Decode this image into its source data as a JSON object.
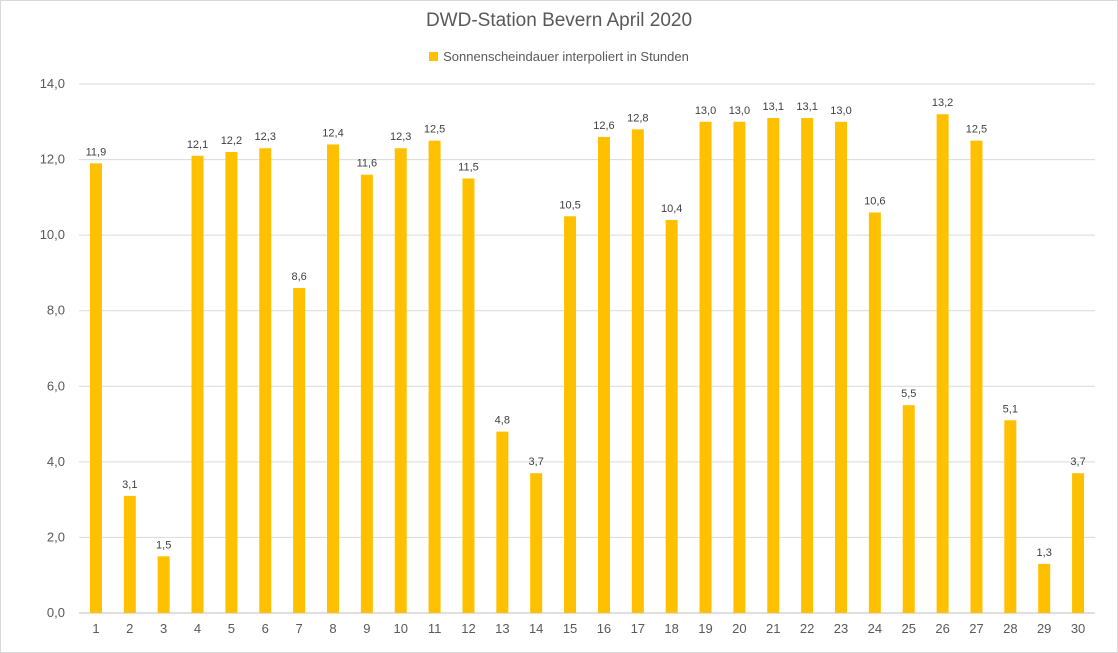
{
  "chart_data": {
    "type": "bar",
    "title": "DWD-Station Bevern April 2020",
    "legend": [
      "Sonnenscheindauer interpoliert in Stunden"
    ],
    "legend_position": "top",
    "categories": [
      "1",
      "2",
      "3",
      "4",
      "5",
      "6",
      "7",
      "8",
      "9",
      "10",
      "11",
      "12",
      "13",
      "14",
      "15",
      "16",
      "17",
      "18",
      "19",
      "20",
      "21",
      "22",
      "23",
      "24",
      "25",
      "26",
      "27",
      "28",
      "29",
      "30"
    ],
    "series": [
      {
        "name": "Sonnenscheindauer interpoliert in Stunden",
        "color": "#ffc000",
        "values": [
          11.9,
          3.1,
          1.5,
          12.1,
          12.2,
          12.3,
          8.6,
          12.4,
          11.6,
          12.3,
          12.5,
          11.5,
          4.8,
          3.7,
          10.5,
          12.6,
          12.8,
          10.4,
          13.0,
          13.0,
          13.1,
          13.1,
          13.0,
          10.6,
          5.5,
          13.2,
          12.5,
          5.1,
          1.3,
          3.7
        ],
        "labels": [
          "11,9",
          "3,1",
          "1,5",
          "12,1",
          "12,2",
          "12,3",
          "8,6",
          "12,4",
          "11,6",
          "12,3",
          "12,5",
          "11,5",
          "4,8",
          "3,7",
          "10,5",
          "12,6",
          "12,8",
          "10,4",
          "13,0",
          "13,0",
          "13,1",
          "13,1",
          "13,0",
          "10,6",
          "5,5",
          "13,2",
          "12,5",
          "5,1",
          "1,3",
          "3,7"
        ]
      }
    ],
    "xlabel": "",
    "ylabel": "",
    "ylim": [
      0,
      14
    ],
    "yticks": [
      0,
      2,
      4,
      6,
      8,
      10,
      12,
      14
    ],
    "ytick_labels": [
      "0,0",
      "2,0",
      "4,0",
      "6,0",
      "8,0",
      "10,0",
      "12,0",
      "14,0"
    ],
    "grid": true
  }
}
